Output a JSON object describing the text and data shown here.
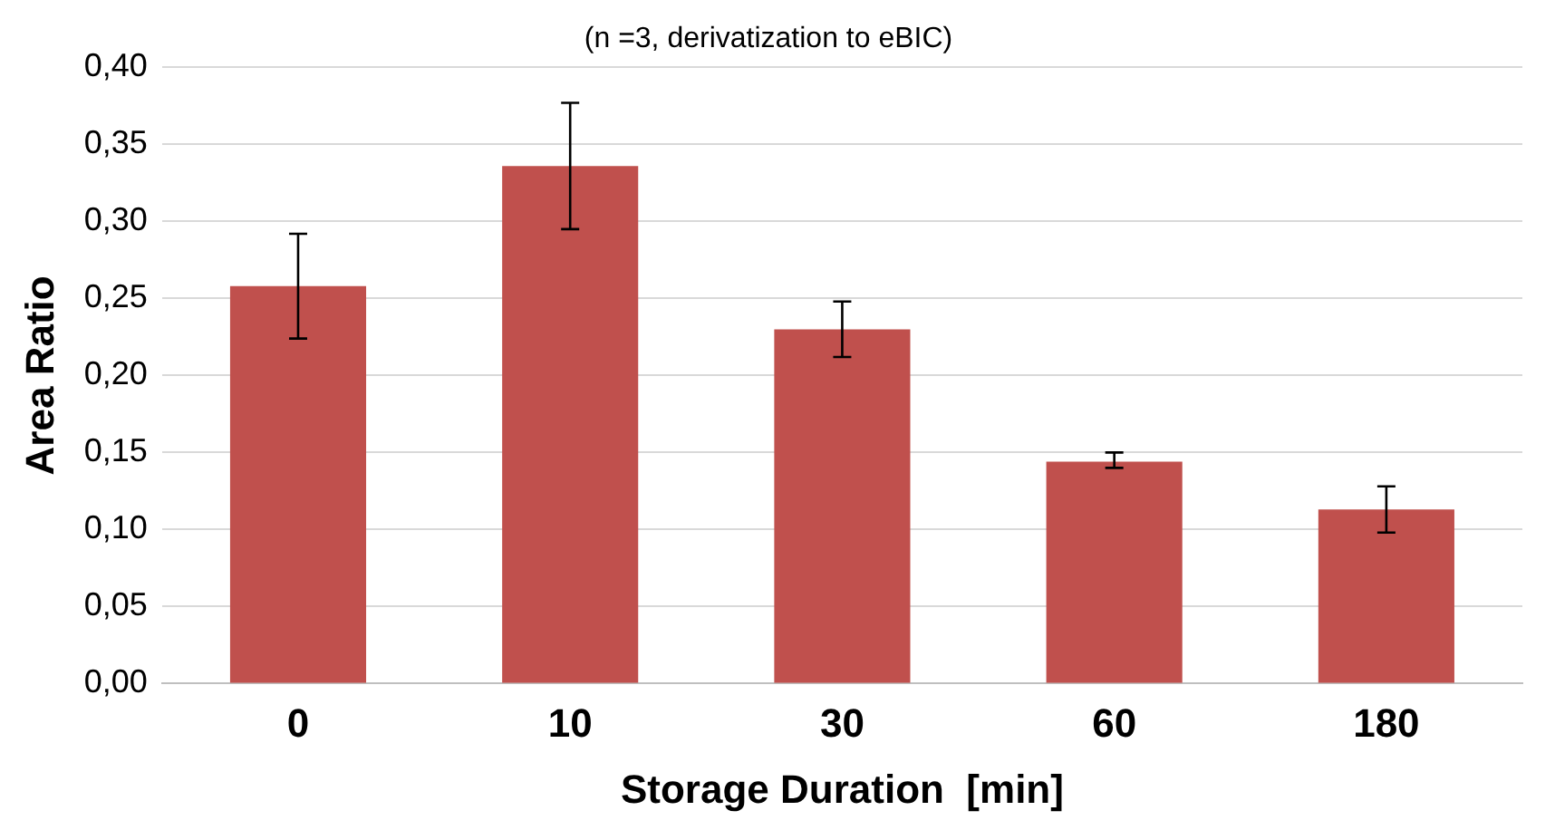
{
  "chart_data": {
    "type": "bar",
    "subtitle": "(n =3, derivatization to eBIC)",
    "xlabel": "Storage Duration  [min]",
    "ylabel": "Area Ratio",
    "categories": [
      "0",
      "10",
      "30",
      "60",
      "180"
    ],
    "values": [
      0.258,
      0.336,
      0.23,
      0.144,
      0.113
    ],
    "errors": [
      [
        0.224,
        0.292
      ],
      [
        0.295,
        0.377
      ],
      [
        0.212,
        0.248
      ],
      [
        0.14,
        0.15
      ],
      [
        0.098,
        0.128
      ]
    ],
    "color": "#c0504d",
    "ylim": [
      0,
      0.4
    ],
    "yticks": [
      {
        "value": 0,
        "label": "0,00"
      },
      {
        "value": 0.05,
        "label": "0,05"
      },
      {
        "value": 0.1,
        "label": "0,10"
      },
      {
        "value": 0.15,
        "label": "0,15"
      },
      {
        "value": 0.2,
        "label": "0,20"
      },
      {
        "value": 0.25,
        "label": "0,25"
      },
      {
        "value": 0.3,
        "label": "0,30"
      },
      {
        "value": 0.35,
        "label": "0,35"
      },
      {
        "value": 0.4,
        "label": "0,40"
      }
    ],
    "grid": "y",
    "legend": false
  }
}
